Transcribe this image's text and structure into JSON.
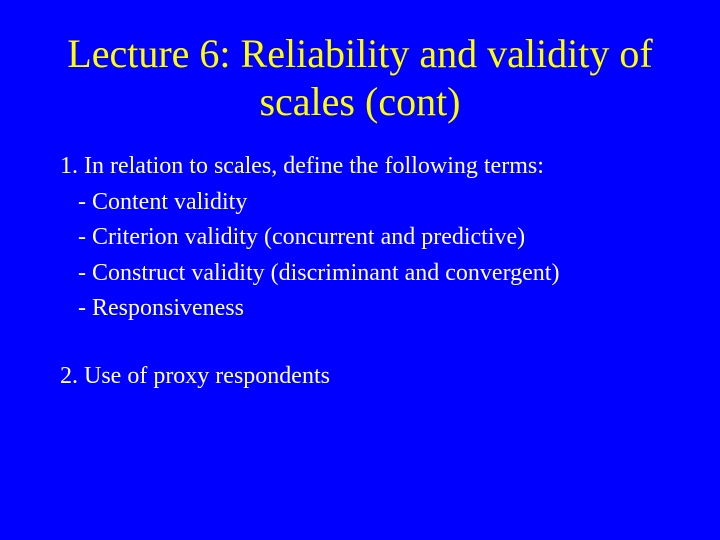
{
  "slide": {
    "title": "Lecture 6:  Reliability and validity of scales (cont)",
    "items": [
      {
        "text": "1. In relation to scales, define the following terms:",
        "indent": false
      },
      {
        "text": " - Content validity",
        "indent": true
      },
      {
        "text": " - Criterion validity (concurrent and predictive)",
        "indent": true
      },
      {
        "text": " - Construct validity (discriminant and convergent)",
        "indent": true
      },
      {
        "text": " - Responsiveness",
        "indent": true
      },
      {
        "text": "",
        "spacer": true
      },
      {
        "text": "2. Use of proxy respondents",
        "indent": false
      }
    ],
    "colors": {
      "background": "#0000ff",
      "title": "#ffff00",
      "body": "#ffffff"
    },
    "typography": {
      "title_fontsize": 40,
      "body_fontsize": 24,
      "font_family": "Times New Roman"
    }
  }
}
